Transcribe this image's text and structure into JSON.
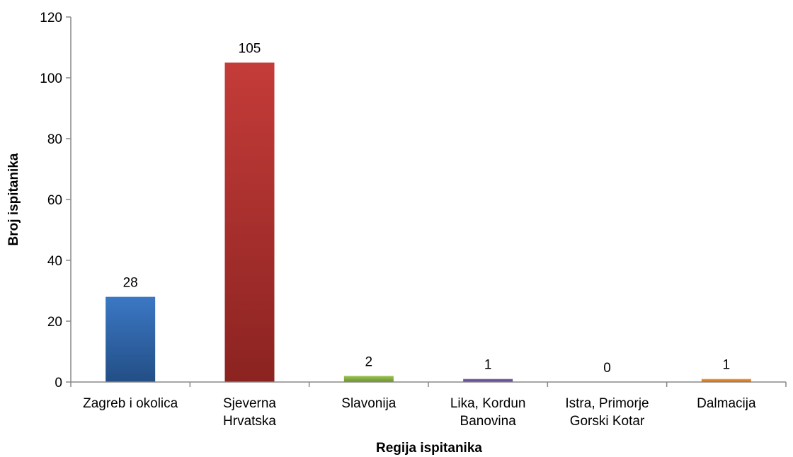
{
  "chart_data": {
    "type": "bar",
    "title": "",
    "xlabel": "Regija ispitanika",
    "ylabel": "Broj ispitanika",
    "ylim": [
      0,
      120
    ],
    "yticks": [
      0,
      20,
      40,
      60,
      80,
      100,
      120
    ],
    "grid": false,
    "legend": "none",
    "categories": [
      [
        "Zagreb i okolica"
      ],
      [
        "Sjeverna",
        "Hrvatska"
      ],
      [
        "Slavonija"
      ],
      [
        "Lika, Kordun",
        "Banovina"
      ],
      [
        "Istra, Primorje",
        "Gorski Kotar"
      ],
      [
        "Dalmacija"
      ]
    ],
    "values": [
      28,
      105,
      2,
      1,
      0,
      1
    ],
    "colors": [
      [
        "#3b78c4",
        "#234e86"
      ],
      [
        "#c43c39",
        "#8b2321"
      ],
      [
        "#9bc451",
        "#6e9130"
      ],
      [
        "#8065a8",
        "#573f80"
      ],
      [
        "#3fb1cc",
        "#2a8198"
      ],
      [
        "#f39a3e",
        "#c26a15"
      ]
    ]
  }
}
